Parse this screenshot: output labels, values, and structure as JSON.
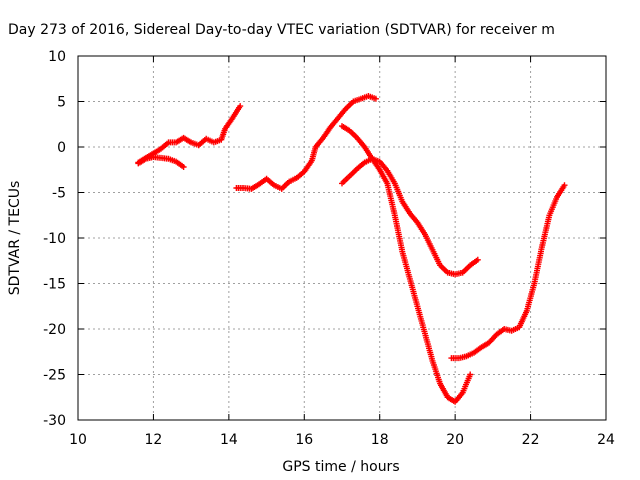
{
  "chart_data": {
    "type": "scatter",
    "title": "Day 273 of 2016, Sidereal Day-to-day VTEC variation (SDTVAR) for receiver m",
    "xlabel": "GPS time / hours",
    "ylabel": "SDTVAR / TECUs",
    "xlim": [
      10,
      24
    ],
    "ylim": [
      -30,
      10
    ],
    "x_ticks": [
      "10",
      "12",
      "14",
      "16",
      "18",
      "20",
      "22",
      "24"
    ],
    "y_ticks": [
      "10",
      "5",
      "0",
      "-5",
      "-10",
      "-15",
      "-20",
      "-25",
      "-30"
    ],
    "grid": true,
    "marker": "+",
    "colors": {
      "series": "#ff0000",
      "grid": "#a0a0a0",
      "axis": "#000000"
    },
    "series": [
      {
        "points": [
          [
            11.6,
            -1.7
          ],
          [
            11.8,
            -1.2
          ],
          [
            12.0,
            -0.7
          ],
          [
            12.2,
            -0.2
          ],
          [
            12.4,
            0.5
          ],
          [
            12.6,
            0.5
          ],
          [
            12.8,
            1.0
          ],
          [
            13.0,
            0.5
          ],
          [
            13.2,
            0.2
          ],
          [
            13.4,
            0.9
          ],
          [
            13.6,
            0.5
          ],
          [
            13.8,
            0.8
          ],
          [
            13.9,
            2.0
          ],
          [
            14.1,
            3.2
          ],
          [
            14.3,
            4.5
          ]
        ]
      },
      {
        "points": [
          [
            11.6,
            -1.8
          ],
          [
            11.8,
            -1.3
          ],
          [
            12.0,
            -1.1
          ],
          [
            12.2,
            -1.2
          ],
          [
            12.4,
            -1.3
          ],
          [
            12.6,
            -1.6
          ],
          [
            12.8,
            -2.2
          ]
        ]
      },
      {
        "points": [
          [
            14.2,
            -4.5
          ],
          [
            14.4,
            -4.5
          ],
          [
            14.6,
            -4.6
          ],
          [
            14.8,
            -4.1
          ],
          [
            15.0,
            -3.5
          ],
          [
            15.2,
            -4.2
          ],
          [
            15.4,
            -4.6
          ],
          [
            15.6,
            -3.8
          ],
          [
            15.8,
            -3.4
          ],
          [
            16.0,
            -2.7
          ],
          [
            16.2,
            -1.5
          ],
          [
            16.3,
            0.0
          ],
          [
            16.5,
            1.0
          ],
          [
            16.7,
            2.2
          ],
          [
            16.9,
            3.2
          ],
          [
            17.1,
            4.2
          ],
          [
            17.3,
            5.0
          ],
          [
            17.5,
            5.3
          ],
          [
            17.7,
            5.6
          ],
          [
            17.9,
            5.3
          ]
        ]
      },
      {
        "points": [
          [
            17.0,
            2.3
          ],
          [
            17.2,
            1.8
          ],
          [
            17.4,
            1.0
          ],
          [
            17.6,
            0.0
          ],
          [
            17.8,
            -1.3
          ],
          [
            18.0,
            -2.5
          ],
          [
            18.2,
            -4.0
          ],
          [
            18.4,
            -7.5
          ],
          [
            18.6,
            -11.5
          ],
          [
            18.8,
            -14.5
          ],
          [
            19.0,
            -17.5
          ],
          [
            19.2,
            -20.5
          ],
          [
            19.4,
            -23.5
          ],
          [
            19.6,
            -26.0
          ],
          [
            19.8,
            -27.5
          ],
          [
            20.0,
            -28.0
          ],
          [
            20.2,
            -27.0
          ],
          [
            20.4,
            -25.0
          ]
        ]
      },
      {
        "points": [
          [
            17.0,
            -4.0
          ],
          [
            17.2,
            -3.2
          ],
          [
            17.4,
            -2.4
          ],
          [
            17.6,
            -1.7
          ],
          [
            17.8,
            -1.3
          ],
          [
            18.0,
            -1.6
          ],
          [
            18.2,
            -2.6
          ],
          [
            18.4,
            -4.0
          ],
          [
            18.6,
            -6.0
          ],
          [
            18.8,
            -7.3
          ],
          [
            19.0,
            -8.3
          ],
          [
            19.2,
            -9.6
          ],
          [
            19.4,
            -11.3
          ],
          [
            19.6,
            -13.0
          ],
          [
            19.8,
            -13.8
          ],
          [
            20.0,
            -14.0
          ],
          [
            20.2,
            -13.8
          ],
          [
            20.4,
            -13.0
          ],
          [
            20.6,
            -12.4
          ]
        ]
      },
      {
        "points": [
          [
            19.9,
            -23.2
          ],
          [
            20.1,
            -23.2
          ],
          [
            20.3,
            -23.0
          ],
          [
            20.5,
            -22.6
          ],
          [
            20.7,
            -22.0
          ],
          [
            20.9,
            -21.5
          ],
          [
            21.1,
            -20.6
          ],
          [
            21.3,
            -20.0
          ],
          [
            21.5,
            -20.2
          ],
          [
            21.7,
            -19.8
          ],
          [
            21.9,
            -18.0
          ],
          [
            22.1,
            -15.0
          ],
          [
            22.3,
            -11.0
          ],
          [
            22.5,
            -7.5
          ],
          [
            22.7,
            -5.5
          ],
          [
            22.9,
            -4.2
          ]
        ]
      }
    ]
  }
}
